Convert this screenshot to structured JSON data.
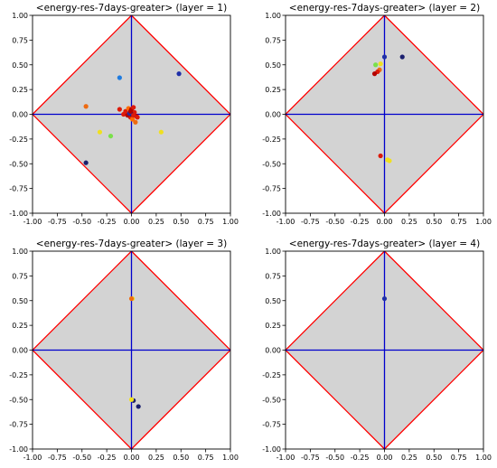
{
  "colors": {
    "diamond_fill": "#d3d3d3",
    "diamond_edge": "#ff0000",
    "axes_lines": "#0000cc",
    "frame": "#000000"
  },
  "chart_data": [
    {
      "type": "scatter",
      "title": "<energy-res-7days-greater> (layer = 1)",
      "xlim": [
        -1.0,
        1.0
      ],
      "ylim": [
        -1.0,
        1.0
      ],
      "xticks": [
        "-1.00",
        "-0.75",
        "-0.50",
        "-0.25",
        "0.00",
        "0.25",
        "0.50",
        "0.75",
        "1.00"
      ],
      "yticks": [
        "-1.00",
        "-0.75",
        "-0.50",
        "-0.25",
        "0.00",
        "0.25",
        "0.50",
        "0.75",
        "1.00"
      ],
      "grid": false,
      "points": [
        {
          "x": 0.48,
          "y": 0.41,
          "color": "#1f2fa8"
        },
        {
          "x": -0.12,
          "y": 0.37,
          "color": "#1e7be0"
        },
        {
          "x": -0.46,
          "y": 0.08,
          "color": "#ee6a10"
        },
        {
          "x": -0.46,
          "y": -0.49,
          "color": "#1a1f6e"
        },
        {
          "x": -0.32,
          "y": -0.18,
          "color": "#f0e020"
        },
        {
          "x": -0.21,
          "y": -0.22,
          "color": "#7ae04a"
        },
        {
          "x": 0.3,
          "y": -0.18,
          "color": "#f0e020"
        },
        {
          "x": -0.12,
          "y": 0.05,
          "color": "#dd1a0a"
        },
        {
          "x": -0.06,
          "y": 0.03,
          "color": "#dd1a0a"
        },
        {
          "x": -0.03,
          "y": 0.06,
          "color": "#ff6a00"
        },
        {
          "x": 0.0,
          "y": 0.05,
          "color": "#b30000"
        },
        {
          "x": 0.02,
          "y": 0.07,
          "color": "#dd1a0a"
        },
        {
          "x": 0.03,
          "y": 0.02,
          "color": "#dd1a0a"
        },
        {
          "x": 0.05,
          "y": -0.02,
          "color": "#b30000"
        },
        {
          "x": -0.01,
          "y": -0.03,
          "color": "#dd1a0a"
        },
        {
          "x": 0.01,
          "y": -0.05,
          "color": "#ff6a00"
        },
        {
          "x": 0.04,
          "y": -0.08,
          "color": "#ee6a10"
        },
        {
          "x": 0.06,
          "y": -0.03,
          "color": "#dd1a0a"
        },
        {
          "x": -0.08,
          "y": 0.0,
          "color": "#dd1a0a"
        },
        {
          "x": -0.04,
          "y": -0.01,
          "color": "#b30000"
        },
        {
          "x": 0.0,
          "y": 0.0,
          "color": "#1a1f6e"
        },
        {
          "x": -0.02,
          "y": 0.01,
          "color": "#1f2fa8"
        },
        {
          "x": 0.02,
          "y": -0.01,
          "color": "#dd1a0a"
        },
        {
          "x": -0.01,
          "y": 0.03,
          "color": "#b30000"
        }
      ]
    },
    {
      "type": "scatter",
      "title": "<energy-res-7days-greater> (layer = 2)",
      "xlim": [
        -1.0,
        1.0
      ],
      "ylim": [
        -1.0,
        1.0
      ],
      "xticks": [
        "-1.00",
        "-0.75",
        "-0.50",
        "-0.25",
        "0.00",
        "0.25",
        "0.50",
        "0.75",
        "1.00"
      ],
      "yticks": [
        "-1.00",
        "-0.75",
        "-0.50",
        "-0.25",
        "0.00",
        "0.25",
        "0.50",
        "0.75",
        "1.00"
      ],
      "grid": false,
      "points": [
        {
          "x": 0.0,
          "y": 0.58,
          "color": "#1f2fa8"
        },
        {
          "x": 0.18,
          "y": 0.58,
          "color": "#1a1f6e"
        },
        {
          "x": -0.04,
          "y": 0.51,
          "color": "#f0e020"
        },
        {
          "x": -0.09,
          "y": 0.5,
          "color": "#7ae04a"
        },
        {
          "x": -0.05,
          "y": 0.45,
          "color": "#ee6a10"
        },
        {
          "x": -0.07,
          "y": 0.43,
          "color": "#dd1a0a"
        },
        {
          "x": -0.1,
          "y": 0.41,
          "color": "#b30000"
        },
        {
          "x": -0.04,
          "y": -0.42,
          "color": "#dd1a0a"
        },
        {
          "x": 0.03,
          "y": -0.46,
          "color": "#f0e020"
        },
        {
          "x": 0.05,
          "y": -0.47,
          "color": "#f0e020"
        }
      ]
    },
    {
      "type": "scatter",
      "title": "<energy-res-7days-greater> (layer = 3)",
      "xlim": [
        -1.0,
        1.0
      ],
      "ylim": [
        -1.0,
        1.0
      ],
      "xticks": [
        "-1.00",
        "-0.75",
        "-0.50",
        "-0.25",
        "0.00",
        "0.25",
        "0.50",
        "0.75",
        "1.00"
      ],
      "yticks": [
        "-1.00",
        "-0.75",
        "-0.50",
        "-0.25",
        "0.00",
        "0.25",
        "0.50",
        "0.75",
        "1.00"
      ],
      "grid": false,
      "points": [
        {
          "x": 0.01,
          "y": 0.52,
          "color": "#f0e020"
        },
        {
          "x": 0.0,
          "y": 0.52,
          "color": "#ee6a10"
        },
        {
          "x": 0.02,
          "y": -0.51,
          "color": "#1a1f6e"
        },
        {
          "x": 0.0,
          "y": -0.5,
          "color": "#f0e020"
        },
        {
          "x": 0.07,
          "y": -0.57,
          "color": "#1a1f6e"
        }
      ]
    },
    {
      "type": "scatter",
      "title": "<energy-res-7days-greater> (layer = 4)",
      "xlim": [
        -1.0,
        1.0
      ],
      "ylim": [
        -1.0,
        1.0
      ],
      "xticks": [
        "-1.00",
        "-0.75",
        "-0.50",
        "-0.25",
        "0.00",
        "0.25",
        "0.50",
        "0.75",
        "1.00"
      ],
      "yticks": [
        "-1.00",
        "-0.75",
        "-0.50",
        "-0.25",
        "0.00",
        "0.25",
        "0.50",
        "0.75",
        "1.00"
      ],
      "grid": false,
      "points": [
        {
          "x": 0.0,
          "y": 0.52,
          "color": "#1f2fa8"
        }
      ]
    }
  ]
}
